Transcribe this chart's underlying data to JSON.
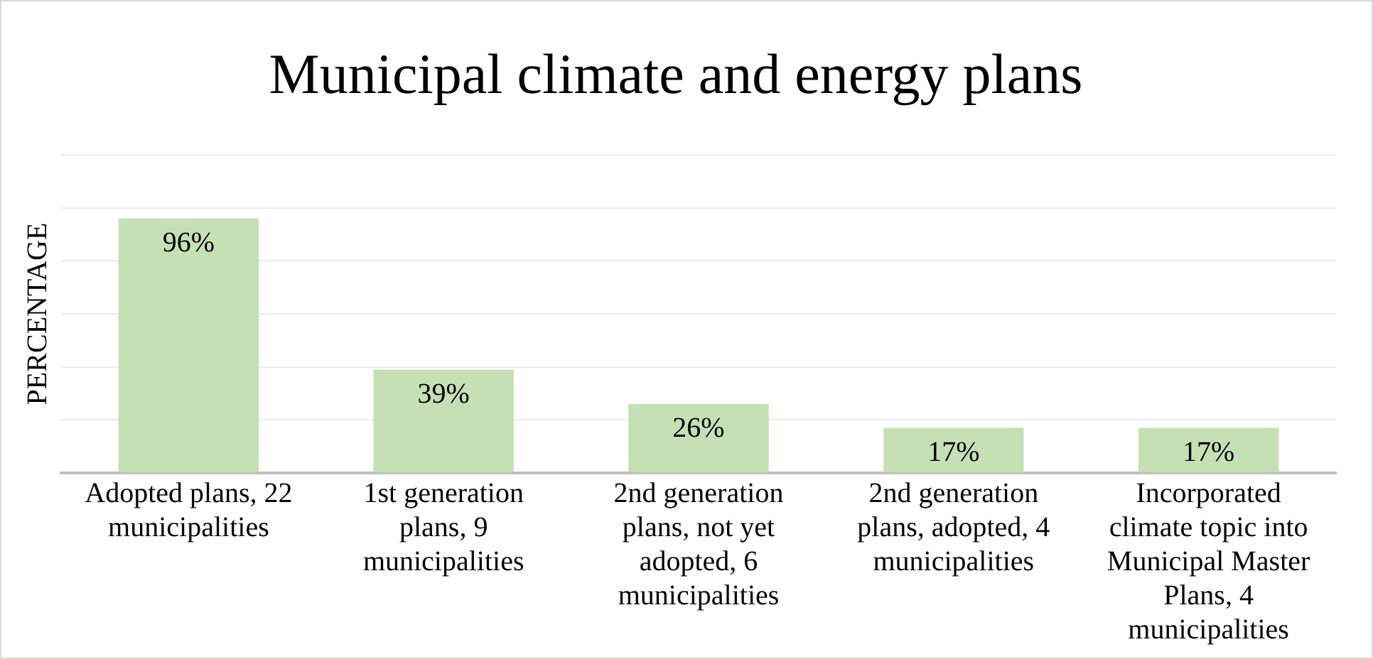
{
  "chart_data": {
    "type": "bar",
    "title": "Municipal climate and energy plans",
    "ylabel": "PERCENTAGE",
    "categories": [
      "Adopted plans, 22 municipalities",
      "1st generation plans, 9 municipalities",
      "2nd generation plans, not yet adopted, 6 municipalities",
      "2nd generation plans, adopted, 4 municipalities",
      "Incorporated climate topic into Municipal Master Plans, 4 municipalities"
    ],
    "values": [
      96,
      39,
      26,
      17,
      17
    ],
    "value_labels": [
      "96%",
      "39%",
      "26%",
      "17%",
      "17%"
    ],
    "color": "#c5e0b4",
    "ylim": [
      0,
      120
    ],
    "yticks": [
      {
        "value": 0,
        "label": null
      },
      {
        "value": 20,
        "label": null
      },
      {
        "value": 40,
        "label": null
      },
      {
        "value": 60,
        "label": null
      },
      {
        "value": 80,
        "label": null
      },
      {
        "value": 100,
        "label": null
      },
      {
        "value": 120,
        "label": null
      }
    ],
    "tick_labels": "x",
    "grid": "y",
    "legend": false
  }
}
